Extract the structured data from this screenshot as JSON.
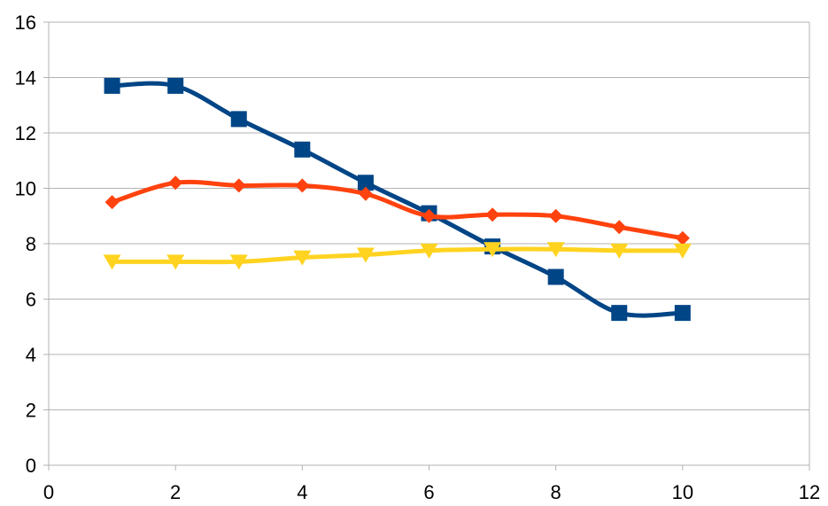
{
  "chart_data": {
    "type": "line",
    "title": "",
    "xlabel": "",
    "ylabel": "",
    "xlim": [
      0,
      12
    ],
    "ylim": [
      0,
      16
    ],
    "x_ticks": [
      0,
      2,
      4,
      6,
      8,
      10,
      12
    ],
    "y_ticks": [
      0,
      2,
      4,
      6,
      8,
      10,
      12,
      14,
      16
    ],
    "x_tick_labels": [
      "0",
      "2",
      "4",
      "6",
      "8",
      "10",
      "12"
    ],
    "y_tick_labels": [
      "0",
      "2",
      "4",
      "6",
      "8",
      "10",
      "12",
      "14",
      "16"
    ],
    "grid": {
      "horizontal": true,
      "vertical": false
    },
    "smooth": true,
    "legend": "none",
    "series": [
      {
        "marker": "square",
        "color": "#004586",
        "x": [
          1,
          2,
          3,
          4,
          5,
          6,
          7,
          8,
          9,
          10
        ],
        "y": [
          13.7,
          13.7,
          12.5,
          11.4,
          10.2,
          9.1,
          7.9,
          6.8,
          5.5,
          5.5
        ]
      },
      {
        "marker": "diamond",
        "color": "#ff420e",
        "x": [
          1,
          2,
          3,
          4,
          5,
          6,
          7,
          8,
          9,
          10
        ],
        "y": [
          9.5,
          10.2,
          10.1,
          10.1,
          9.8,
          9.0,
          9.05,
          9.0,
          8.6,
          8.2
        ]
      },
      {
        "marker": "triangle-down",
        "color": "#ffd320",
        "x": [
          1,
          2,
          3,
          4,
          5,
          6,
          7,
          8,
          9,
          10
        ],
        "y": [
          7.35,
          7.35,
          7.35,
          7.5,
          7.6,
          7.75,
          7.8,
          7.8,
          7.75,
          7.75
        ]
      }
    ]
  }
}
